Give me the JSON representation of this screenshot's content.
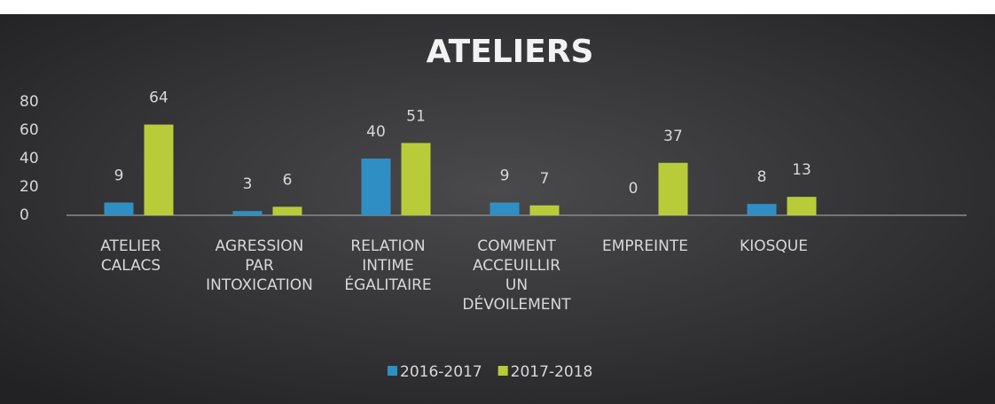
{
  "chart_data": {
    "type": "bar",
    "title": "ATELIERS",
    "categories": [
      "ATELIER CALACS",
      "AGRESSION PAR INTOXICATION",
      "RELATION INTIME ÉGALITAIRE",
      "COMMENT ACCEUILLIR UN DÉVOILEMENT",
      "EMPREINTE",
      "KIOSQUE"
    ],
    "series": [
      {
        "name": "2016-2017",
        "color": "#2f8fc4",
        "values": [
          9,
          3,
          40,
          9,
          0,
          8
        ]
      },
      {
        "name": "2017-2018",
        "color": "#b8cc3a",
        "values": [
          64,
          6,
          51,
          7,
          37,
          13
        ]
      }
    ],
    "ylim": [
      0,
      80
    ],
    "yticks": [
      0,
      20,
      40,
      60,
      80
    ],
    "grid": false,
    "legend": "bottom"
  }
}
